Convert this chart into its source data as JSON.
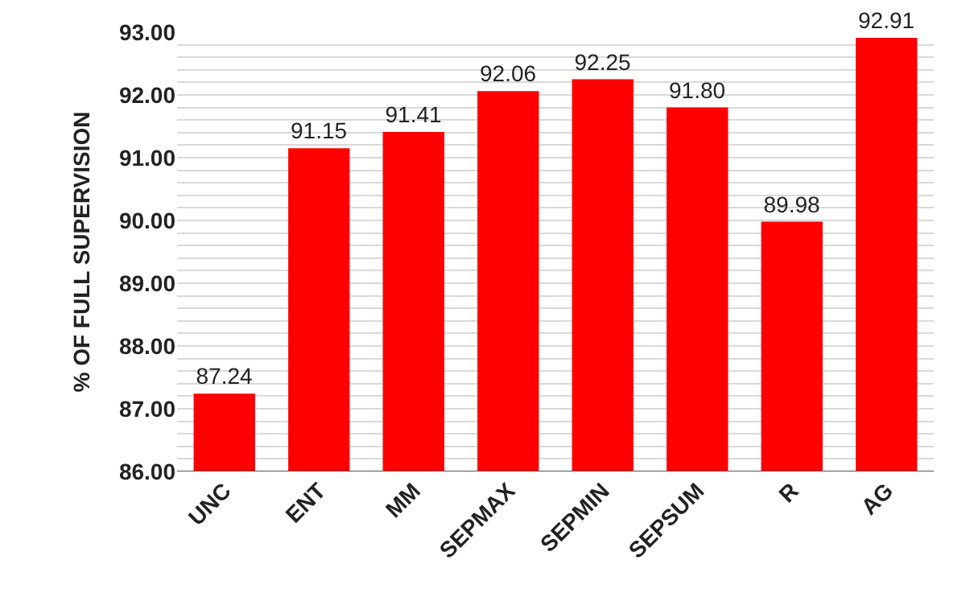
{
  "chart_data": {
    "type": "bar",
    "ylabel": "% OF FULL SUPERVISION",
    "categories": [
      "UNC",
      "ENT",
      "MM",
      "SEPMAX",
      "SEPMIN",
      "SEPSUM",
      "R",
      "AG"
    ],
    "values": [
      87.24,
      91.15,
      91.41,
      92.06,
      92.25,
      91.8,
      89.98,
      92.91
    ],
    "value_labels": [
      "87.24",
      "91.15",
      "91.41",
      "92.06",
      "92.25",
      "91.80",
      "89.98",
      "92.91"
    ],
    "color": "#ff0000",
    "ylim": [
      86,
      93
    ],
    "yticks": [
      {
        "value": 86,
        "label": "86.00"
      },
      {
        "value": 86.2,
        "label": null
      },
      {
        "value": 86.4,
        "label": null
      },
      {
        "value": 86.6,
        "label": null
      },
      {
        "value": 86.8,
        "label": null
      },
      {
        "value": 87,
        "label": "87.00"
      },
      {
        "value": 87.2,
        "label": null
      },
      {
        "value": 87.4,
        "label": null
      },
      {
        "value": 87.6,
        "label": null
      },
      {
        "value": 87.8,
        "label": null
      },
      {
        "value": 88,
        "label": "88.00"
      },
      {
        "value": 88.2,
        "label": null
      },
      {
        "value": 88.4,
        "label": null
      },
      {
        "value": 88.6,
        "label": null
      },
      {
        "value": 88.8,
        "label": null
      },
      {
        "value": 89,
        "label": "89.00"
      },
      {
        "value": 89.2,
        "label": null
      },
      {
        "value": 89.4,
        "label": null
      },
      {
        "value": 89.6,
        "label": null
      },
      {
        "value": 89.8,
        "label": null
      },
      {
        "value": 90,
        "label": "90.00"
      },
      {
        "value": 90.2,
        "label": null
      },
      {
        "value": 90.4,
        "label": null
      },
      {
        "value": 90.6,
        "label": null
      },
      {
        "value": 90.8,
        "label": null
      },
      {
        "value": 91,
        "label": "91.00"
      },
      {
        "value": 91.2,
        "label": null
      },
      {
        "value": 91.4,
        "label": null
      },
      {
        "value": 91.6,
        "label": null
      },
      {
        "value": 91.8,
        "label": null
      },
      {
        "value": 92,
        "label": "92.00"
      },
      {
        "value": 92.2,
        "label": null
      },
      {
        "value": 92.4,
        "label": null
      },
      {
        "value": 92.6,
        "label": null
      },
      {
        "value": 92.8,
        "label": null
      },
      {
        "value": 93,
        "label": "93.00"
      }
    ],
    "grid": "y",
    "legend": false
  }
}
